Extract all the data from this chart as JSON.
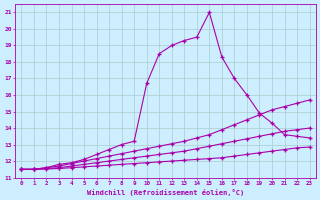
{
  "xlabel": "Windchill (Refroidissement éolien,°C)",
  "bg_color": "#cceeff",
  "line_color": "#aa00aa",
  "grid_color": "#aacccc",
  "xlim": [
    -0.5,
    23.5
  ],
  "ylim": [
    11,
    21.5
  ],
  "yticks": [
    11,
    12,
    13,
    14,
    15,
    16,
    17,
    18,
    19,
    20,
    21
  ],
  "xticks": [
    0,
    1,
    2,
    3,
    4,
    5,
    6,
    7,
    8,
    9,
    10,
    11,
    12,
    13,
    14,
    15,
    16,
    17,
    18,
    19,
    20,
    21,
    22,
    23
  ],
  "lines": [
    {
      "x": [
        0,
        1,
        2,
        3,
        4,
        5,
        6,
        7,
        8,
        9,
        10,
        11,
        12,
        13,
        14,
        15,
        16,
        17,
        18,
        19,
        20,
        21,
        22,
        23
      ],
      "y": [
        11.5,
        11.5,
        11.6,
        11.8,
        11.9,
        12.1,
        12.4,
        12.7,
        13.0,
        13.2,
        16.7,
        18.5,
        19.0,
        19.3,
        19.5,
        21.0,
        18.3,
        17.0,
        16.0,
        14.9,
        14.3,
        13.6,
        13.5,
        13.4
      ]
    },
    {
      "x": [
        0,
        1,
        2,
        3,
        4,
        5,
        6,
        7,
        8,
        9,
        10,
        11,
        12,
        13,
        14,
        15,
        16,
        17,
        18,
        19,
        20,
        21,
        22,
        23
      ],
      "y": [
        11.5,
        11.5,
        11.6,
        11.7,
        11.85,
        12.0,
        12.15,
        12.3,
        12.45,
        12.6,
        12.75,
        12.9,
        13.05,
        13.2,
        13.4,
        13.6,
        13.9,
        14.2,
        14.5,
        14.8,
        15.1,
        15.3,
        15.5,
        15.7
      ]
    },
    {
      "x": [
        0,
        1,
        2,
        3,
        4,
        5,
        6,
        7,
        8,
        9,
        10,
        11,
        12,
        13,
        14,
        15,
        16,
        17,
        18,
        19,
        20,
        21,
        22,
        23
      ],
      "y": [
        11.5,
        11.5,
        11.55,
        11.6,
        11.7,
        11.8,
        11.9,
        12.0,
        12.1,
        12.2,
        12.3,
        12.4,
        12.5,
        12.6,
        12.75,
        12.9,
        13.05,
        13.2,
        13.35,
        13.5,
        13.65,
        13.8,
        13.9,
        14.0
      ]
    },
    {
      "x": [
        0,
        1,
        2,
        3,
        4,
        5,
        6,
        7,
        8,
        9,
        10,
        11,
        12,
        13,
        14,
        15,
        16,
        17,
        18,
        19,
        20,
        21,
        22,
        23
      ],
      "y": [
        11.5,
        11.5,
        11.52,
        11.55,
        11.6,
        11.65,
        11.7,
        11.75,
        11.8,
        11.85,
        11.9,
        11.95,
        12.0,
        12.05,
        12.1,
        12.15,
        12.2,
        12.3,
        12.4,
        12.5,
        12.6,
        12.7,
        12.8,
        12.85
      ]
    }
  ]
}
